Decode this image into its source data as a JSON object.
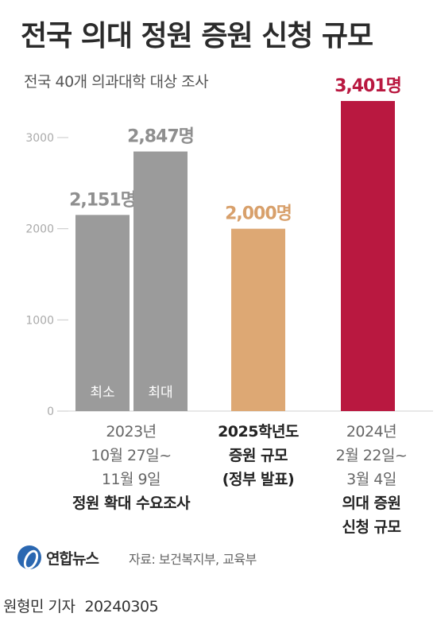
{
  "header": {
    "title": "전국 의대 정원 증원 신청 규모",
    "subtitle": "전국 40개 의과대학 대상 조사"
  },
  "chart_data": {
    "type": "bar",
    "title": "전국 의대 정원 증원 신청 규모",
    "subtitle": "전국 40개 의과대학 대상 조사",
    "ylim": [
      0,
      3401
    ],
    "yticks": [
      0,
      1000,
      2000,
      3000
    ],
    "grid": false,
    "legend": "none",
    "bars": [
      {
        "value": 2151,
        "label": "2,151명",
        "inner_label": "최소",
        "color": "#9b9b9b",
        "label_color": "#8f8f8f",
        "group": 0
      },
      {
        "value": 2847,
        "label": "2,847명",
        "inner_label": "최대",
        "color": "#9b9b9b",
        "label_color": "#8f8f8f",
        "group": 0
      },
      {
        "value": 2000,
        "label": "2,000명",
        "inner_label": "",
        "color": "#dda874",
        "label_color": "#d8a06b",
        "group": 1
      },
      {
        "value": 3401,
        "label": "3,401명",
        "inner_label": "",
        "color": "#b91840",
        "label_color": "#b91840",
        "group": 2
      }
    ],
    "categories": [
      {
        "lines": [
          "2023년",
          "10월 27일~",
          "11월 9일"
        ],
        "bold_lines": [
          "정원 확대 수요조사"
        ]
      },
      {
        "lines": [],
        "bold_lines": [
          "2025학년도",
          "증원 규모",
          "(정부 발표)"
        ]
      },
      {
        "lines": [
          "2024년",
          "2월 22일~",
          "3월 4일"
        ],
        "bold_lines": [
          "의대 증원",
          "신청 규모"
        ]
      }
    ]
  },
  "footer": {
    "logo_text": "연합뉴스",
    "source": "자료: 보건복지부, 교육부",
    "author": "원형민 기자",
    "date": "20240305"
  }
}
